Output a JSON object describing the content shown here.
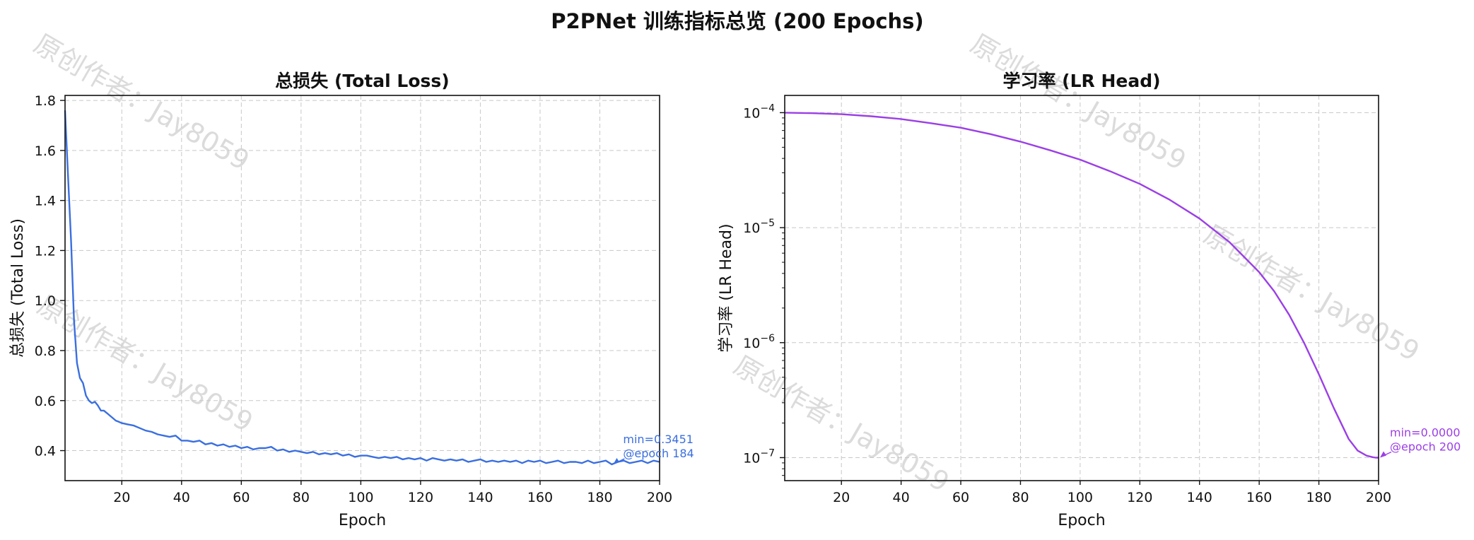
{
  "figure": {
    "title": "P2PNet 训练指标总览 (200 Epochs)",
    "watermark": "原创作者：Jay8059"
  },
  "chart_data": [
    {
      "type": "line",
      "title": "总损失 (Total Loss)",
      "xlabel": "Epoch",
      "ylabel": "总损失 (Total Loss)",
      "xlim": [
        1,
        200
      ],
      "ylim": [
        0.28,
        1.82
      ],
      "xticks": [
        20,
        40,
        60,
        80,
        100,
        120,
        140,
        160,
        180,
        200
      ],
      "yticks": [
        0.4,
        0.6,
        0.8,
        1.0,
        1.2,
        1.4,
        1.6,
        1.8
      ],
      "ytick_labels": [
        "0.4",
        "0.6",
        "0.8",
        "1.0",
        "1.2",
        "1.4",
        "1.6",
        "1.8"
      ],
      "yscale": "linear",
      "grid": true,
      "color": "#3a6fe0",
      "series": [
        {
          "x": [
            1,
            2,
            3,
            4,
            5,
            6,
            7,
            8,
            9,
            10,
            11,
            12,
            13,
            14,
            15,
            16,
            17,
            18,
            19,
            20,
            22,
            24,
            26,
            28,
            30,
            32,
            34,
            36,
            38,
            40,
            42,
            44,
            46,
            48,
            50,
            52,
            54,
            56,
            58,
            60,
            62,
            64,
            66,
            68,
            70,
            72,
            74,
            76,
            78,
            80,
            82,
            84,
            86,
            88,
            90,
            92,
            94,
            96,
            98,
            100,
            102,
            104,
            106,
            108,
            110,
            112,
            114,
            116,
            118,
            120,
            122,
            124,
            126,
            128,
            130,
            132,
            134,
            136,
            138,
            140,
            142,
            144,
            146,
            148,
            150,
            152,
            154,
            156,
            158,
            160,
            162,
            164,
            166,
            168,
            170,
            172,
            174,
            176,
            178,
            180,
            182,
            184,
            186,
            188,
            190,
            192,
            194,
            196,
            198,
            200
          ],
          "values": [
            1.76,
            1.5,
            1.24,
            0.92,
            0.75,
            0.69,
            0.67,
            0.62,
            0.6,
            0.59,
            0.595,
            0.58,
            0.56,
            0.56,
            0.55,
            0.54,
            0.53,
            0.52,
            0.515,
            0.51,
            0.505,
            0.5,
            0.49,
            0.48,
            0.475,
            0.465,
            0.46,
            0.455,
            0.46,
            0.44,
            0.44,
            0.435,
            0.44,
            0.425,
            0.43,
            0.42,
            0.425,
            0.415,
            0.42,
            0.41,
            0.415,
            0.405,
            0.41,
            0.41,
            0.415,
            0.4,
            0.405,
            0.395,
            0.4,
            0.395,
            0.39,
            0.395,
            0.385,
            0.39,
            0.385,
            0.39,
            0.38,
            0.385,
            0.375,
            0.38,
            0.38,
            0.375,
            0.37,
            0.375,
            0.37,
            0.375,
            0.365,
            0.37,
            0.365,
            0.37,
            0.36,
            0.37,
            0.365,
            0.36,
            0.365,
            0.36,
            0.365,
            0.355,
            0.36,
            0.365,
            0.355,
            0.36,
            0.355,
            0.36,
            0.355,
            0.36,
            0.35,
            0.36,
            0.355,
            0.36,
            0.35,
            0.355,
            0.36,
            0.35,
            0.355,
            0.355,
            0.35,
            0.36,
            0.35,
            0.355,
            0.36,
            0.3451,
            0.355,
            0.36,
            0.35,
            0.355,
            0.36,
            0.35,
            0.36,
            0.355
          ]
        }
      ],
      "annotation": {
        "line1": "min=0.3451",
        "line2": "@epoch 184",
        "x": 184,
        "y": 0.3451
      }
    },
    {
      "type": "line",
      "title": "学习率 (LR Head)",
      "xlabel": "Epoch",
      "ylabel": "学习率 (LR Head)",
      "xlim": [
        1,
        200
      ],
      "ylim_log10": [
        -7.2,
        -3.85
      ],
      "xticks": [
        20,
        40,
        60,
        80,
        100,
        120,
        140,
        160,
        180,
        200
      ],
      "yticks_log10": [
        -4,
        -5,
        -6,
        -7
      ],
      "ytick_base": "10",
      "ytick_exponents": [
        "−4",
        "−5",
        "−6",
        "−7"
      ],
      "yscale": "log",
      "grid": true,
      "color": "#9b3fe6",
      "series": [
        {
          "x": [
            1,
            10,
            20,
            30,
            40,
            50,
            60,
            70,
            80,
            90,
            100,
            110,
            120,
            130,
            140,
            150,
            160,
            165,
            170,
            175,
            180,
            185,
            190,
            193,
            196,
            198,
            199,
            200
          ],
          "values": [
            0.0001,
            9.9e-05,
            9.7e-05,
            9.3e-05,
            8.8e-05,
            8.1e-05,
            7.4e-05,
            6.5e-05,
            5.6e-05,
            4.7e-05,
            3.9e-05,
            3.1e-05,
            2.4e-05,
            1.75e-05,
            1.2e-05,
            7.5e-06,
            4.1e-06,
            2.8e-06,
            1.75e-06,
            1e-06,
            5.3e-07,
            2.7e-07,
            1.45e-07,
            1.15e-07,
            1.04e-07,
            1.01e-07,
            1e-07,
            1e-07
          ]
        }
      ],
      "annotation": {
        "line1": "min=0.0000",
        "line2": "@epoch 200",
        "x": 200,
        "y": 1e-07
      }
    }
  ]
}
